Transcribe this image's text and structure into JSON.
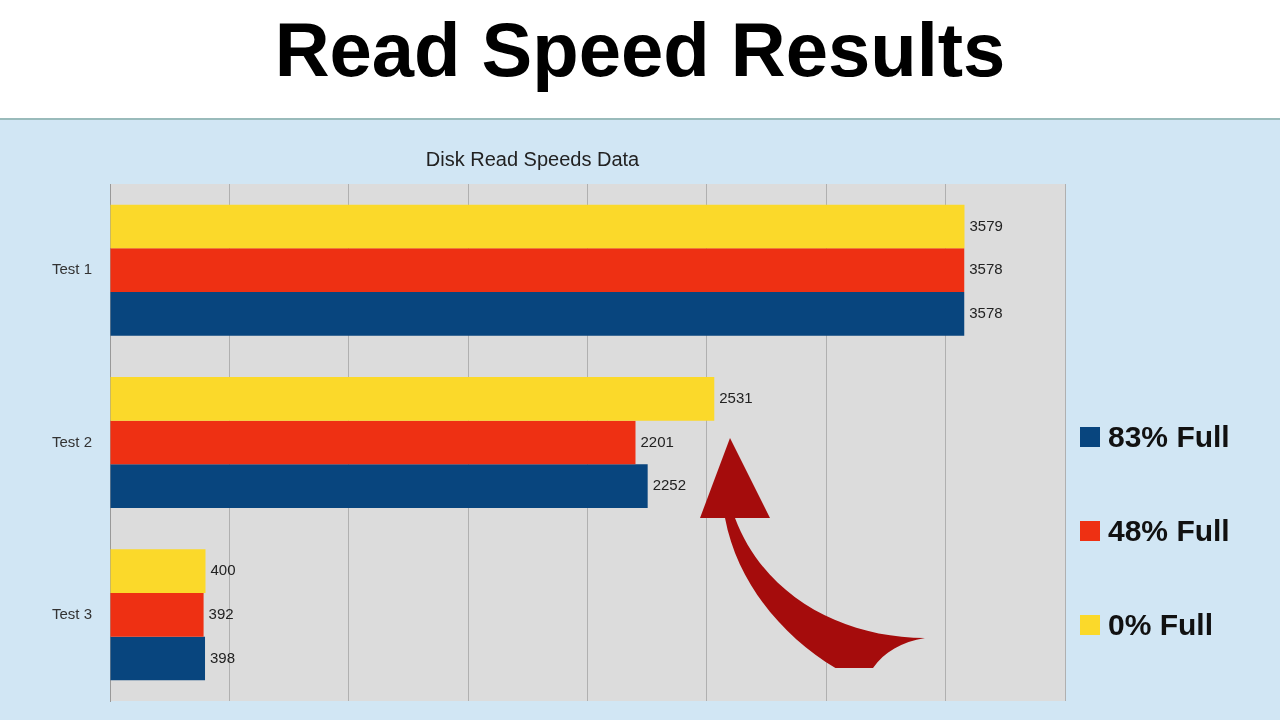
{
  "chart_data": {
    "type": "bar",
    "orientation": "horizontal",
    "title": "Read Speed Results",
    "subtitle": "Disk Read Speeds Data",
    "categories": [
      "Test 1",
      "Test 2",
      "Test 3"
    ],
    "series": [
      {
        "name": "83% Full",
        "color": "#08457e",
        "values": [
          3578,
          2252,
          398
        ]
      },
      {
        "name": "48% Full",
        "color": "#ee3013",
        "values": [
          3578,
          2201,
          392
        ]
      },
      {
        "name": "0% Full",
        "color": "#fbd92a",
        "values": [
          3579,
          2531,
          400
        ]
      }
    ],
    "xlim": [
      0,
      4000
    ],
    "xticks": [
      {
        "value": 0,
        "label": null
      },
      {
        "value": 500,
        "label": null
      },
      {
        "value": 1000,
        "label": null
      },
      {
        "value": 1500,
        "label": null
      },
      {
        "value": 2000,
        "label": null
      },
      {
        "value": 2500,
        "label": null
      },
      {
        "value": 3000,
        "label": null
      },
      {
        "value": 3500,
        "label": null
      },
      {
        "value": 4000,
        "label": null
      }
    ],
    "tick_labels": "y",
    "grid": "x",
    "legend": "right",
    "data_labels": true
  }
}
